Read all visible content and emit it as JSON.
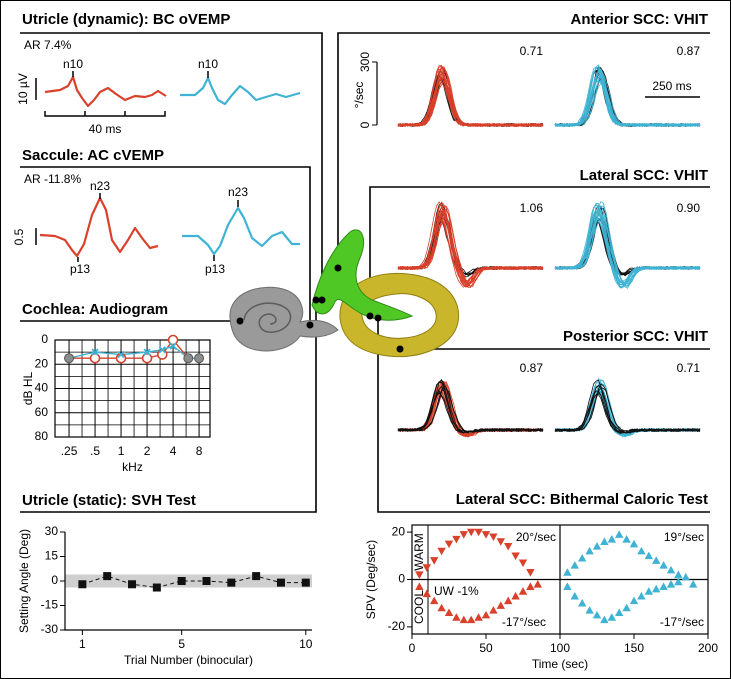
{
  "panels": {
    "bc_ovemp": {
      "title": "Utricle (dynamic): BC oVEMP",
      "ar": "AR 7.4%",
      "amplitude_scale": "10 µV",
      "time_scale": "40 ms",
      "peaks": [
        "n10",
        "n10"
      ]
    },
    "ac_cvemp": {
      "title": "Saccule: AC cVEMP",
      "ar": "AR -11.8%",
      "amplitude_scale": "0.5",
      "peaks_top": [
        "n23",
        "n23"
      ],
      "peaks_bottom": [
        "p13",
        "p13"
      ]
    },
    "vhit": [
      {
        "title": "Anterior SCC: VHIT",
        "gains": [
          "0.71",
          "0.87"
        ],
        "y_label": "°/sec",
        "ylim": [
          0,
          300
        ],
        "yticks": [
          0,
          300
        ],
        "time_scale": "250 ms"
      },
      {
        "title": "Lateral SCC: VHIT",
        "gains": [
          "1.06",
          "0.90"
        ]
      },
      {
        "title": "Posterior SCC: VHIT",
        "gains": [
          "0.87",
          "0.71"
        ]
      }
    ]
  },
  "chart_data": [
    {
      "type": "line",
      "title": "Cochlea: Audiogram",
      "y_label": "dB HL",
      "x_label": "kHz",
      "x": [
        0.25,
        0.5,
        1,
        2,
        3,
        4,
        6,
        8
      ],
      "xlog": true,
      "xlim": [
        0.172,
        10.7
      ],
      "xticks": [
        {
          "value": 0.25,
          "label": ".25"
        },
        {
          "value": 0.5,
          "label": ".5"
        },
        1,
        2,
        4,
        8
      ],
      "ylim": [
        0,
        80
      ],
      "yinverted": true,
      "yticks": [
        0,
        20,
        40,
        60,
        80
      ],
      "grid": true,
      "overlap_color": "#8c8c8c",
      "series": [
        {
          "color": "#d9412b",
          "marker": "circle",
          "values": [
            15,
            15,
            15,
            15,
            12,
            0,
            15,
            15
          ]
        },
        {
          "color": "#3fb3d3",
          "marker": "x",
          "values": [
            15,
            10,
            12,
            10,
            8,
            5,
            15,
            15
          ]
        }
      ]
    },
    {
      "type": "scatter",
      "title": "Utricle (static): SVH Test",
      "y_label": "Setting Angle (Deg)",
      "x_label": "Trial Number (binocular)",
      "xlim": [
        0.3,
        10.25
      ],
      "xticks": [
        1,
        5,
        10
      ],
      "ylim": [
        -30,
        30
      ],
      "yticks": [
        -30,
        -15,
        0,
        15,
        30
      ],
      "frame": "axes",
      "band": [
        -4,
        4
      ],
      "band_color": "#cfcfcf",
      "connect": "dashed",
      "series": [
        {
          "color": "#111111",
          "marker": "square",
          "x": [
            1,
            2,
            3,
            4,
            5,
            6,
            7,
            8,
            9,
            10
          ],
          "values": [
            -2,
            3,
            -2,
            -4,
            0,
            0,
            -1,
            3,
            -1,
            -1
          ]
        }
      ]
    },
    {
      "type": "scatter",
      "title": "Lateral SCC: Bithermal Caloric Test",
      "y_label": "SPV (Deg/sec)",
      "x_label": "Time (sec)",
      "xlim": [
        0,
        200
      ],
      "xticks": [
        0,
        50,
        100,
        150,
        200
      ],
      "ylim": [
        -23,
        23
      ],
      "yticks": [
        -20,
        0,
        20
      ],
      "frame": "box",
      "annotations": [
        "WARM",
        "COOL",
        "UW -1%",
        "20°/sec",
        "19°/sec",
        "-17°/sec",
        "-17°/sec"
      ],
      "series": [
        {
          "color": "#d9412b",
          "marker": "triangle-down",
          "x": [
            5,
            10,
            15,
            20,
            25,
            30,
            35,
            40,
            45,
            50,
            55,
            60,
            65,
            70,
            75,
            80
          ],
          "values": [
            2,
            5,
            8,
            12,
            15,
            17,
            19,
            20,
            20,
            19,
            18,
            16,
            14,
            10,
            7,
            3
          ]
        },
        {
          "color": "#d9412b",
          "marker": "triangle-up",
          "x": [
            5,
            10,
            15,
            20,
            25,
            30,
            35,
            40,
            45,
            50,
            55,
            60,
            65,
            70,
            75,
            80,
            85
          ],
          "values": [
            -3,
            -6,
            -9,
            -12,
            -14,
            -16,
            -17,
            -17,
            -16,
            -15,
            -13,
            -11,
            -9,
            -7,
            -5,
            -3,
            -2
          ]
        },
        {
          "color": "#3fb3d3",
          "marker": "triangle-up",
          "x": [
            105,
            110,
            115,
            120,
            125,
            130,
            135,
            140,
            145,
            150,
            155,
            160,
            165,
            170,
            175,
            180,
            185,
            190
          ],
          "values": [
            3,
            6,
            9,
            12,
            14,
            16,
            17,
            19,
            17,
            15,
            12,
            10,
            8,
            6,
            4,
            2,
            1,
            -2
          ]
        },
        {
          "color": "#3fb3d3",
          "marker": "triangle-up",
          "x": [
            105,
            110,
            115,
            120,
            125,
            130,
            135,
            140,
            145,
            150,
            155,
            160,
            165,
            170,
            175,
            180
          ],
          "values": [
            -3,
            -7,
            -10,
            -13,
            -15,
            -17,
            -16,
            -14,
            -12,
            -9,
            -7,
            -5,
            -4,
            -3,
            -2,
            -1
          ]
        }
      ]
    }
  ]
}
